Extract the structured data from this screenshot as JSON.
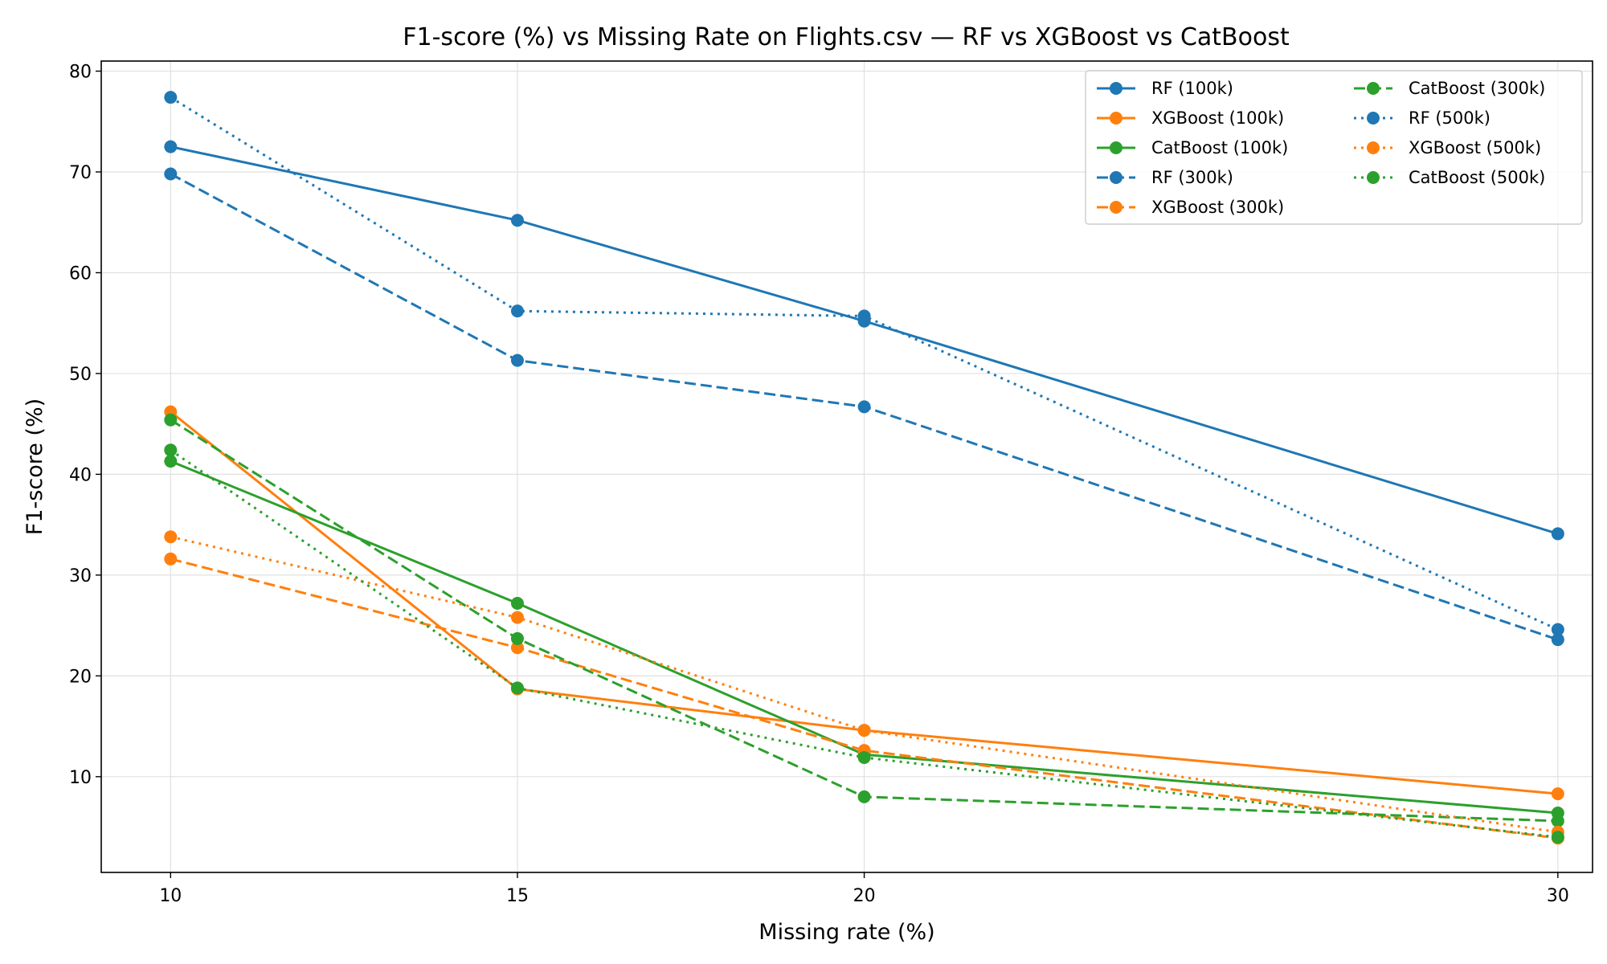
{
  "chart_data": {
    "type": "line",
    "title": "F1-score (%) vs Missing Rate on Flights.csv — RF vs XGBoost vs CatBoost",
    "xlabel": "Missing rate (%)",
    "ylabel": "F1-score (%)",
    "x": [
      10,
      15,
      20,
      30
    ],
    "x_ticks": [
      10,
      15,
      20,
      30
    ],
    "y_ticks": [
      10,
      20,
      30,
      40,
      50,
      60,
      70,
      80
    ],
    "xlim": [
      9,
      30.5
    ],
    "ylim": [
      0.5,
      81
    ],
    "grid": true,
    "legend_position": "upper right",
    "legend_columns": 2,
    "series": [
      {
        "name": "RF (100k)",
        "color": "#1f77b4",
        "style": "solid",
        "values": [
          72.5,
          65.2,
          55.2,
          34.1
        ]
      },
      {
        "name": "XGBoost (100k)",
        "color": "#ff7f0e",
        "style": "solid",
        "values": [
          46.2,
          18.7,
          14.6,
          8.3
        ]
      },
      {
        "name": "CatBoost (100k)",
        "color": "#2ca02c",
        "style": "solid",
        "values": [
          41.3,
          27.2,
          12.2,
          6.4
        ]
      },
      {
        "name": "RF (300k)",
        "color": "#1f77b4",
        "style": "dashed",
        "values": [
          69.8,
          51.3,
          46.7,
          23.6
        ]
      },
      {
        "name": "XGBoost (300k)",
        "color": "#ff7f0e",
        "style": "dashed",
        "values": [
          31.6,
          22.8,
          12.6,
          3.9
        ]
      },
      {
        "name": "CatBoost (300k)",
        "color": "#2ca02c",
        "style": "dashed",
        "values": [
          45.4,
          23.7,
          8.0,
          5.6
        ]
      },
      {
        "name": "RF (500k)",
        "color": "#1f77b4",
        "style": "dotted",
        "values": [
          77.4,
          56.2,
          55.7,
          24.6
        ]
      },
      {
        "name": "XGBoost (500k)",
        "color": "#ff7f0e",
        "style": "dotted",
        "values": [
          33.8,
          25.8,
          14.6,
          4.5
        ]
      },
      {
        "name": "CatBoost (500k)",
        "color": "#2ca02c",
        "style": "dotted",
        "values": [
          42.4,
          18.8,
          11.9,
          4.0
        ]
      }
    ]
  }
}
